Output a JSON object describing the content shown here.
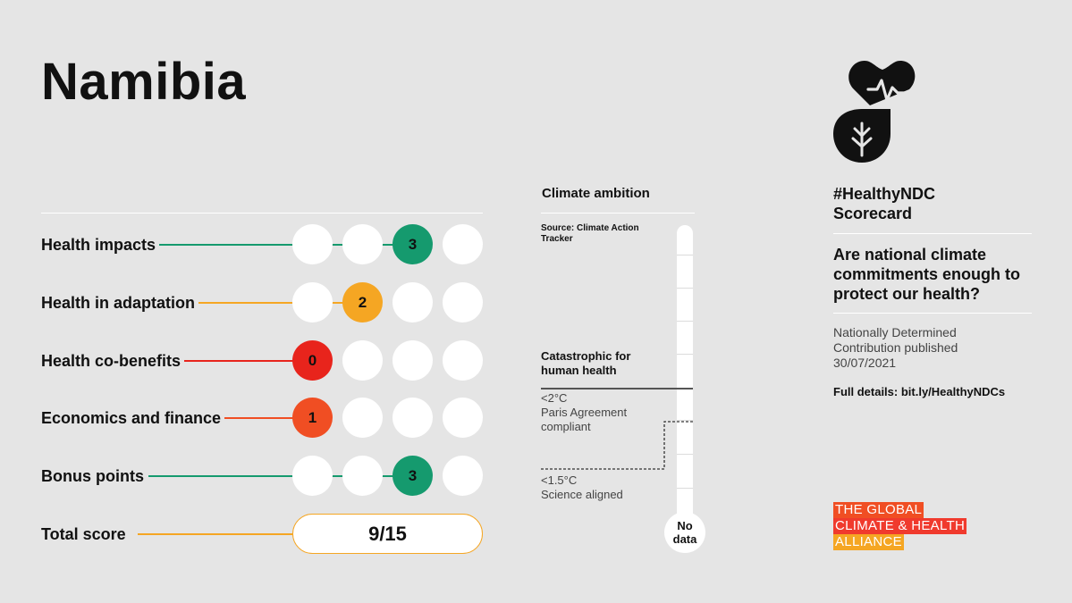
{
  "country": "Namibia",
  "colors": {
    "green": "#159a6e",
    "amber": "#f5a623",
    "red": "#e8241c",
    "orange": "#f04e23",
    "circle": "#ffffff",
    "background": "#e5e5e5"
  },
  "categories": [
    {
      "label": "Health impacts",
      "score": "3",
      "color": "#159a6e"
    },
    {
      "label": "Health in adaptation",
      "score": "2",
      "color": "#f5a623"
    },
    {
      "label": "Health co-benefits",
      "score": "0",
      "color": "#e8241c"
    },
    {
      "label": "Economics and finance",
      "score": "1",
      "color": "#f04e23"
    },
    {
      "label": "Bonus points",
      "score": "3",
      "color": "#159a6e"
    }
  ],
  "total": {
    "label": "Total score",
    "value": "9/15",
    "color": "#f5a623"
  },
  "climate_ambition": {
    "title": "Climate ambition",
    "source": "Source: Climate Action Tracker",
    "catastrophic_line1": "Catastrophic for",
    "catastrophic_line2": "human health",
    "paris_line1": "<2°C",
    "paris_line2": "Paris Agreement",
    "paris_line3": "compliant",
    "science_line1": "<1.5°C",
    "science_line2": "Science aligned",
    "indicator_line1": "No",
    "indicator_line2": "data"
  },
  "sidebar": {
    "hashtag_line1": "#HealthyNDC",
    "hashtag_line2": "Scorecard",
    "question": "Are national climate commitments enough to protect our health?",
    "ndc_line1": "Nationally Determined",
    "ndc_line2": "Contribution published",
    "ndc_line3": "30/07/2021",
    "details": "Full details: bit.ly/HealthyNDCs",
    "logo_icon": "heart-leaf-icon",
    "brand_line1": "THE GLOBAL",
    "brand_line2": "CLIMATE & HEALTH",
    "brand_line3": "ALLIANCE"
  }
}
